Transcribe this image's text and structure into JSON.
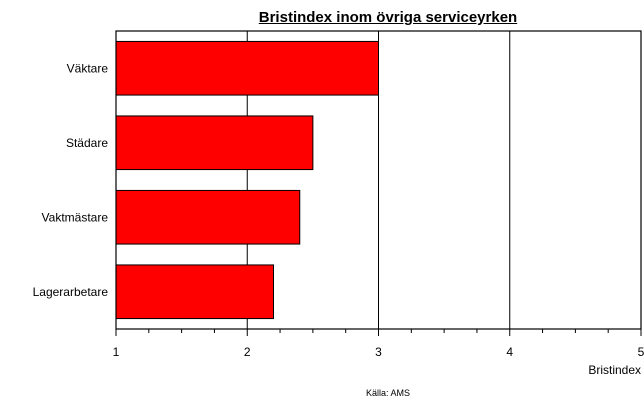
{
  "chart_data": {
    "type": "bar",
    "orientation": "horizontal",
    "title": "Bristindex inom övriga serviceyrken",
    "xlabel": "Bristindex",
    "ylabel": "",
    "categories": [
      "Väktare",
      "Städare",
      "Vaktmästare",
      "Lagerarbetare"
    ],
    "values": [
      3.0,
      2.5,
      2.4,
      2.2
    ],
    "xlim": [
      1,
      5
    ],
    "xticks": [
      "1",
      "2",
      "3",
      "4",
      "5"
    ],
    "grid": "vertical",
    "bar_color": "#ff0000",
    "source": "Källa: AMS"
  }
}
